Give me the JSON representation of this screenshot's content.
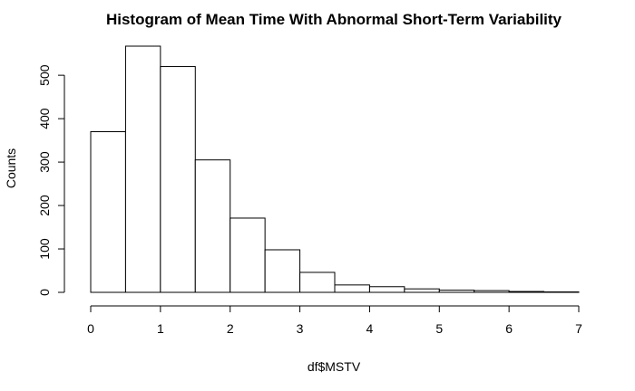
{
  "chart_data": {
    "type": "bar",
    "title": "Histogram of Mean Time With Abnormal Short-Term Variability",
    "xlabel": "df$MSTV",
    "ylabel": "Counts",
    "bins": [
      {
        "from": 0.0,
        "to": 0.5,
        "count": 370
      },
      {
        "from": 0.5,
        "to": 1.0,
        "count": 567
      },
      {
        "from": 1.0,
        "to": 1.5,
        "count": 520
      },
      {
        "from": 1.5,
        "to": 2.0,
        "count": 305
      },
      {
        "from": 2.0,
        "to": 2.5,
        "count": 171
      },
      {
        "from": 2.5,
        "to": 3.0,
        "count": 98
      },
      {
        "from": 3.0,
        "to": 3.5,
        "count": 46
      },
      {
        "from": 3.5,
        "to": 4.0,
        "count": 17
      },
      {
        "from": 4.0,
        "to": 4.5,
        "count": 13
      },
      {
        "from": 4.5,
        "to": 5.0,
        "count": 8
      },
      {
        "from": 5.0,
        "to": 5.5,
        "count": 5
      },
      {
        "from": 5.5,
        "to": 6.0,
        "count": 4
      },
      {
        "from": 6.0,
        "to": 6.5,
        "count": 2
      },
      {
        "from": 6.5,
        "to": 7.0,
        "count": 1
      }
    ],
    "x_ticks": [
      0,
      1,
      2,
      3,
      4,
      5,
      6,
      7
    ],
    "y_ticks": [
      0,
      100,
      200,
      300,
      400,
      500
    ],
    "xlim": [
      0,
      7
    ],
    "ylim": [
      0,
      567
    ],
    "grid": false,
    "legend": "none",
    "colors": {
      "bar_fill": "#ffffff",
      "bar_stroke": "#000000"
    }
  }
}
